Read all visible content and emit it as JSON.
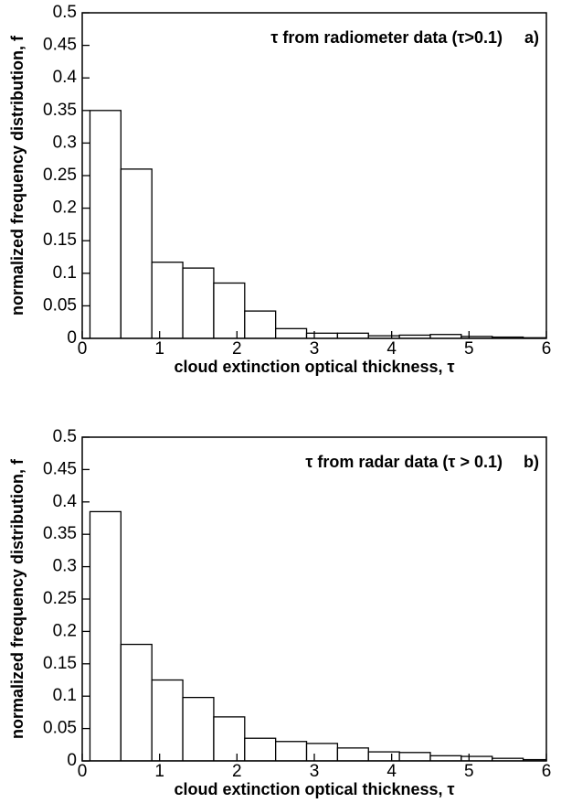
{
  "chart_data": [
    {
      "type": "histogram",
      "title": "τ from radiometer data (τ>0.1)",
      "panel_label": "a)",
      "x_label": "cloud extinction optical thickness, τ",
      "y_label": "normalized frequency distribution, f",
      "bins": [
        0.1,
        0.5,
        0.9,
        1.3,
        1.7,
        2.1,
        2.5,
        2.9,
        3.3,
        3.7,
        4.1,
        4.5,
        4.9,
        5.3,
        5.7,
        6.1
      ],
      "values": [
        0.35,
        0.26,
        0.117,
        0.108,
        0.085,
        0.042,
        0.015,
        0.008,
        0.008,
        0.004,
        0.005,
        0.006,
        0.003,
        0.002,
        0.001
      ],
      "color": "#ffffff",
      "xlim": [
        0,
        6
      ],
      "xticks": [
        0,
        1,
        2,
        3,
        4,
        5,
        6
      ],
      "ylim": [
        0,
        0.5
      ],
      "yticks": [
        0,
        0.05,
        0.1,
        0.15,
        0.2,
        0.25,
        0.3,
        0.35,
        0.4,
        0.45,
        0.5
      ]
    },
    {
      "type": "histogram",
      "title": "τ from radar data (τ > 0.1)",
      "panel_label": "b)",
      "x_label": "cloud extinction optical thickness, τ",
      "y_label": "normalized frequency distribution, f",
      "bins": [
        0.1,
        0.5,
        0.9,
        1.3,
        1.7,
        2.1,
        2.5,
        2.9,
        3.3,
        3.7,
        4.1,
        4.5,
        4.9,
        5.3,
        5.7,
        6.1
      ],
      "values": [
        0.385,
        0.18,
        0.125,
        0.098,
        0.068,
        0.035,
        0.03,
        0.027,
        0.02,
        0.014,
        0.013,
        0.008,
        0.007,
        0.004,
        0.002
      ],
      "color": "#ffffff",
      "xlim": [
        0,
        6
      ],
      "xticks": [
        0,
        1,
        2,
        3,
        4,
        5,
        6
      ],
      "ylim": [
        0,
        0.5
      ],
      "yticks": [
        0,
        0.05,
        0.1,
        0.15,
        0.2,
        0.25,
        0.3,
        0.35,
        0.4,
        0.45,
        0.5
      ]
    }
  ]
}
